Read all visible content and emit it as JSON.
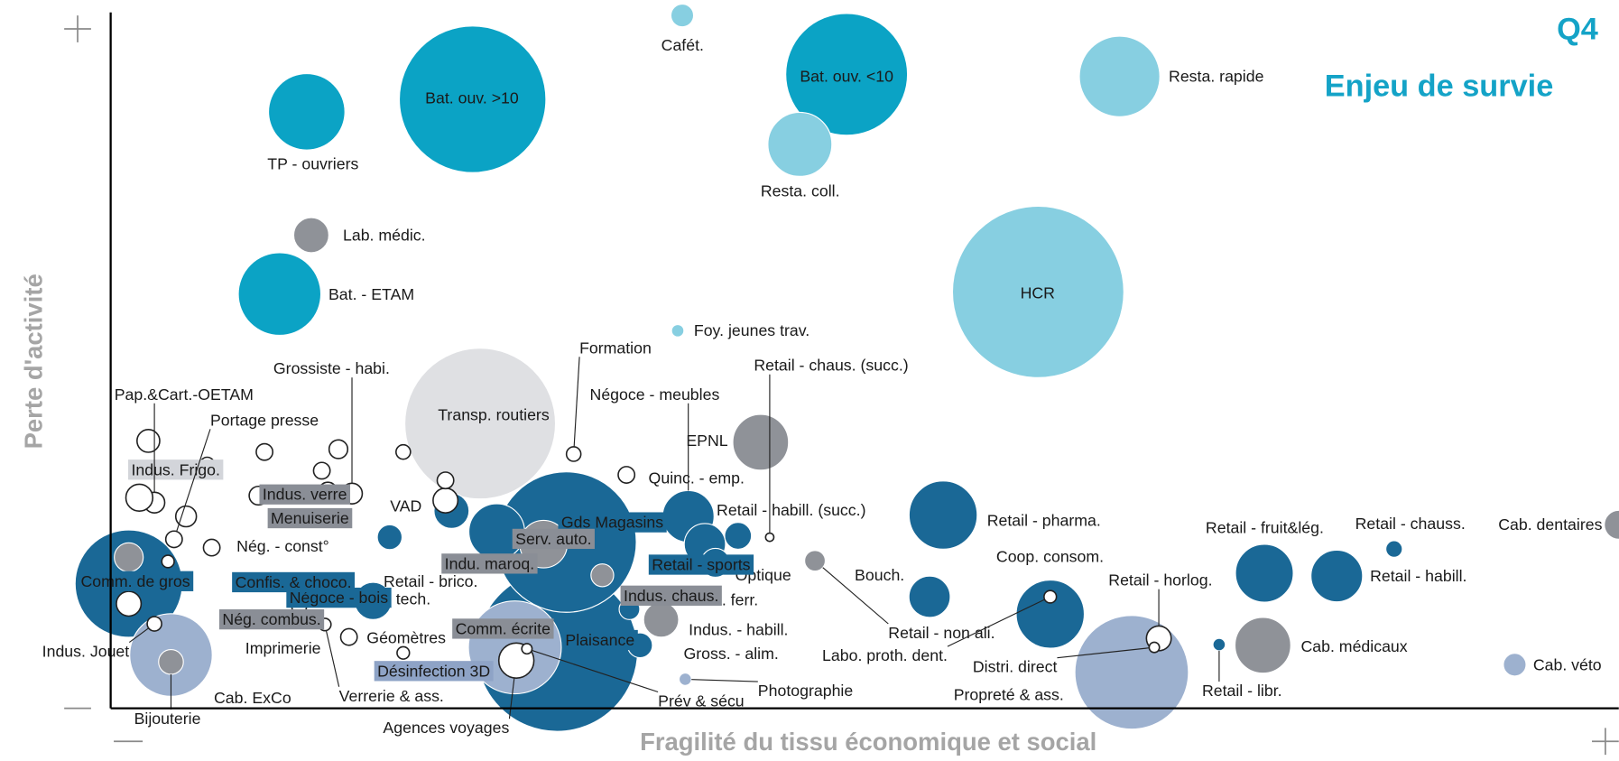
{
  "chart_data": {
    "type": "bubble",
    "title": "Q4",
    "subtitle": "Enjeu de survie",
    "x_label": "Fragilité du tissu économique et social",
    "y_label": "Perte d'activité",
    "xlim": [
      0,
      100
    ],
    "ylim": [
      0,
      100
    ],
    "points": [
      {
        "name": "Plaisance",
        "x": 29.6,
        "y": 8.3,
        "size": 78,
        "color": "#1a6896"
      },
      {
        "name": "HCR",
        "x": 61.5,
        "y": 60.1,
        "size": 83,
        "color": "#87cfe1"
      },
      {
        "name": "Transp. routiers",
        "x": 24.5,
        "y": 41.1,
        "size": 73,
        "color": "#dfe0e3"
      },
      {
        "name": "Bat. ouv. >10",
        "x": 24.0,
        "y": 87.9,
        "size": 71,
        "color": "#0ba3c5"
      },
      {
        "name": "Gds Magasins",
        "x": 30.2,
        "y": 24.0,
        "size": 68,
        "color": "#1a6896"
      },
      {
        "name": "Bat. ouv. <10",
        "x": 48.8,
        "y": 91.5,
        "size": 59,
        "color": "#0ba3c5"
      },
      {
        "name": "Propreté  & ass.",
        "x": 67.7,
        "y": 5.2,
        "size": 55,
        "color": "#9db1cf"
      },
      {
        "name": "Comm. de gros",
        "x": 1.2,
        "y": 18.0,
        "size": 52,
        "color": "#1a6896"
      },
      {
        "name": null,
        "x": 1.2,
        "y": 21.8,
        "size": 14,
        "color": "#8f9298"
      },
      {
        "name": null,
        "x": 1.2,
        "y": 15.1,
        "size": 12,
        "color": "#ffffff"
      },
      {
        "name": "Comm. écrite",
        "x": 26.8,
        "y": 8.8,
        "size": 45,
        "color": "#9db1cf"
      },
      {
        "name": "Cab. ExCo",
        "x": 4.0,
        "y": 7.7,
        "size": 40,
        "color": "#9db1cf"
      },
      {
        "name": "Bat. - ETAM",
        "x": 11.2,
        "y": 59.8,
        "size": 40,
        "color": "#0ba3c5"
      },
      {
        "name": "Resta. rapide",
        "x": 66.9,
        "y": 91.2,
        "size": 39,
        "color": "#87cfe1"
      },
      {
        "name": "TP - ouvriers",
        "x": 13.0,
        "y": 86.1,
        "size": 37,
        "color": "#0ba3c5"
      },
      {
        "name": "Retail - pharma.",
        "x": 55.2,
        "y": 27.9,
        "size": 33,
        "color": "#1a6896"
      },
      {
        "name": "Coop. consom.",
        "x": 62.3,
        "y": 13.6,
        "size": 33,
        "color": "#1a6896"
      },
      {
        "name": "Resta. coll.",
        "x": 45.7,
        "y": 81.4,
        "size": 31,
        "color": "#87cfe1"
      },
      {
        "name": "Retail - fruit&lég.",
        "x": 76.5,
        "y": 19.5,
        "size": 28,
        "color": "#1a6896"
      },
      {
        "name": "Cab. médicaux",
        "x": 76.4,
        "y": 9.1,
        "size": 27,
        "color": "#8f9298"
      },
      {
        "name": "EPNL",
        "x": 43.1,
        "y": 38.4,
        "size": 27,
        "color": "#8f9298"
      },
      {
        "name": "Indu. maroq.",
        "x": 25.6,
        "y": 25.5,
        "size": 27,
        "color": "#1a6896"
      },
      {
        "name": "Retail - habill.",
        "x": 81.3,
        "y": 19.1,
        "size": 25,
        "color": "#1a6896"
      },
      {
        "name": "Négoce - meubles",
        "x": 38.3,
        "y": 27.7,
        "size": 25,
        "color": "#1a6896"
      },
      {
        "name": "Serv. auto.",
        "x": 28.7,
        "y": 23.7,
        "size": 23,
        "color": "#8f9298"
      },
      {
        "name": "Retail - sports",
        "x": 39.4,
        "y": 23.7,
        "size": 20,
        "color": "#1a6896"
      },
      {
        "name": "Bouch.",
        "x": 54.3,
        "y": 16.1,
        "size": 20,
        "color": "#1a6896"
      },
      {
        "name": "Négoce - bois",
        "x": 17.4,
        "y": 15.5,
        "size": 18,
        "color": "#1a6896"
      },
      {
        "name": "Indus. chaus.",
        "x": 36.5,
        "y": 12.8,
        "size": 17,
        "color": "#8f9298"
      },
      {
        "name": "Agences voyages",
        "x": 26.9,
        "y": 6.9,
        "size": 17,
        "color": "#ffffff"
      },
      {
        "name": "Retail - brico.",
        "x": 22.6,
        "y": 28.5,
        "size": 17,
        "color": "#1a6896"
      },
      {
        "name": "Lab. médic.",
        "x": 13.3,
        "y": 68.3,
        "size": 17,
        "color": "#8f9298"
      },
      {
        "name": "Manut. ferr.",
        "x": 40.1,
        "y": 21.0,
        "size": 14,
        "color": "#1a6896"
      },
      {
        "name": "Cab. dentaires",
        "x": 100.0,
        "y": 26.5,
        "size": 14,
        "color": "#8f9298"
      },
      {
        "name": "Retail - habill. (succ.)",
        "x": 41.6,
        "y": 24.9,
        "size": 13,
        "color": "#1a6896"
      },
      {
        "name": "VAD",
        "x": 18.5,
        "y": 24.7,
        "size": 12,
        "color": "#1a6896"
      },
      {
        "name": "Bijouterie",
        "x": 4.0,
        "y": 6.7,
        "size": 12,
        "color": "#8f9298"
      },
      {
        "name": "Retail - horlog.",
        "x": 69.5,
        "y": 10.1,
        "size": 12,
        "color": "#ffffff"
      },
      {
        "name": "Retail - tech.",
        "x": 22.2,
        "y": 30.0,
        "size": 12,
        "color": "#ffffff"
      },
      {
        "name": "Cafét.",
        "x": 37.9,
        "y": 100.0,
        "size": 11,
        "color": "#87cfe1"
      },
      {
        "name": "Cab. véto",
        "x": 93.1,
        "y": 6.3,
        "size": 11,
        "color": "#9db1cf"
      },
      {
        "name": "Optique",
        "x": 32.6,
        "y": 19.2,
        "size": 11,
        "color": "#8f9298"
      },
      {
        "name": "Retail - non ali.",
        "x": 46.7,
        "y": 21.3,
        "size": 10,
        "color": "#8f9298"
      },
      {
        "name": "Labo. proth. dent.",
        "x": 62.3,
        "y": 16.1,
        "size": 6,
        "color": "#ffffff"
      },
      {
        "name": "Retail - chauss.",
        "x": 85.1,
        "y": 23.0,
        "size": 8,
        "color": "#1a6896"
      },
      {
        "name": "Quinc. - emp.",
        "x": 34.2,
        "y": 33.7,
        "size": 8,
        "color": "#ffffff"
      },
      {
        "name": "Retail - libr.",
        "x": 73.5,
        "y": 9.2,
        "size": 6,
        "color": "#1a6896"
      },
      {
        "name": "Photographie",
        "x": 38.1,
        "y": 4.2,
        "size": 6,
        "color": "#9db1cf"
      },
      {
        "name": "Foy. jeunes trav.",
        "x": 37.6,
        "y": 54.5,
        "size": 6,
        "color": "#87cfe1"
      },
      {
        "name": "Indus. Jouet",
        "x": 2.9,
        "y": 12.2,
        "size": 7,
        "color": "#ffffff"
      },
      {
        "name": "Indus. Frigo.",
        "x": 3.8,
        "y": 21.2,
        "size": 6,
        "color": "#ffffff"
      },
      {
        "name": "Pap.&Cart.-OETAM",
        "x": 2.9,
        "y": 29.7,
        "size": 10,
        "color": "#ffffff"
      },
      {
        "name": "Portage presse",
        "x": 4.2,
        "y": 24.4,
        "size": 8,
        "color": "#ffffff"
      },
      {
        "name": "Grossiste - habi.",
        "x": 16.0,
        "y": 31.0,
        "size": 10,
        "color": "#ffffff"
      },
      {
        "name": "Indus. verre",
        "x": 9.8,
        "y": 30.7,
        "size": 9,
        "color": "#ffffff"
      },
      {
        "name": "Menuiserie",
        "x": 14.4,
        "y": 31.3,
        "size": 9,
        "color": "#ffffff"
      },
      {
        "name": "Nég. - const°",
        "x": 6.7,
        "y": 23.2,
        "size": 8,
        "color": "#ffffff"
      },
      {
        "name": "Confis. & choco.",
        "x": 14.0,
        "y": 17.9,
        "size": 8,
        "color": "#ffffff"
      },
      {
        "name": "Nég. combus.",
        "x": 12.5,
        "y": 14.6,
        "size": 7,
        "color": "#ffffff"
      },
      {
        "name": "Géomètres",
        "x": 15.8,
        "y": 10.3,
        "size": 8,
        "color": "#ffffff"
      },
      {
        "name": "Imprimerie",
        "x": 13.1,
        "y": 12.8,
        "size": 7,
        "color": "#ffffff"
      },
      {
        "name": "Verrerie & ass.",
        "x": 14.2,
        "y": 12.1,
        "size": 6,
        "color": "#ffffff"
      },
      {
        "name": "Désinfection 3D",
        "x": 19.4,
        "y": 8.0,
        "size": 6,
        "color": "#ffffff"
      },
      {
        "name": "Indus. - habill.",
        "x": 34.4,
        "y": 14.3,
        "size": 10,
        "color": "#1a6896"
      },
      {
        "name": "Gross. - alim.",
        "x": 35.1,
        "y": 9.1,
        "size": 12,
        "color": "#1a6896"
      },
      {
        "name": "Prév & sécu",
        "x": 27.6,
        "y": 8.6,
        "size": 5,
        "color": "#ffffff"
      },
      {
        "name": "Distri. direct",
        "x": 69.2,
        "y": 8.8,
        "size": 5,
        "color": "#ffffff"
      },
      {
        "name": "Formation",
        "x": 30.7,
        "y": 36.7,
        "size": 7,
        "color": "#ffffff"
      },
      {
        "name": "Retail - chaus. (succ.)",
        "x": 43.7,
        "y": 24.7,
        "size": 4,
        "color": "#ffffff"
      },
      {
        "name": null,
        "x": 2.5,
        "y": 38.6,
        "size": 11,
        "color": "#ffffff"
      },
      {
        "name": null,
        "x": 1.9,
        "y": 30.4,
        "size": 13,
        "color": "#ffffff"
      },
      {
        "name": null,
        "x": 5.0,
        "y": 27.7,
        "size": 10,
        "color": "#ffffff"
      },
      {
        "name": null,
        "x": 6.4,
        "y": 35.2,
        "size": 7,
        "color": "#ffffff"
      },
      {
        "name": null,
        "x": 10.2,
        "y": 37.0,
        "size": 8,
        "color": "#ffffff"
      },
      {
        "name": null,
        "x": 14.0,
        "y": 34.3,
        "size": 8,
        "color": "#ffffff"
      },
      {
        "name": null,
        "x": 15.1,
        "y": 37.4,
        "size": 9,
        "color": "#ffffff"
      },
      {
        "name": null,
        "x": 19.4,
        "y": 37.0,
        "size": 7,
        "color": "#ffffff"
      },
      {
        "name": null,
        "x": 22.2,
        "y": 32.9,
        "size": 8,
        "color": "#ffffff"
      }
    ]
  }
}
